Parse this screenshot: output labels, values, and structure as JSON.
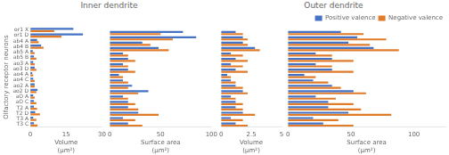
{
  "chart_data": [
    {
      "type": "bar",
      "orientation": "horizontal",
      "title": "Inner dendrite",
      "xlabel": "Volume\n(μm²)",
      "ylabel": "Olfactory receptor neurons",
      "categories": [
        "T3 C",
        "T3 A",
        "T2 D",
        "T2 A",
        "aO C",
        "aO A",
        "ao2 D",
        "ao2 A",
        "ao4 C",
        "ao4 A",
        "ao3 D",
        "ao3 A",
        "ab5 B",
        "ab5 A",
        "ab4 B",
        "ab4 A",
        "or1 D",
        "or1 X"
      ],
      "series": [
        {
          "name": "Positive valence",
          "color": "#4472c4",
          "values": [
            1.5,
            1.2,
            2.0,
            1.5,
            1.5,
            1.2,
            3.0,
            1.8,
            1.2,
            0.8,
            1.8,
            1.2,
            1.5,
            1.0,
            4.5,
            2.8,
            22,
            18
          ]
        },
        {
          "name": "Negative valence",
          "color": "#e07b2a",
          "values": [
            3.0,
            2.5,
            4.0,
            2.8,
            2.5,
            1.8,
            2.5,
            1.8,
            1.8,
            1.2,
            2.5,
            1.8,
            2.5,
            1.8,
            5.5,
            3.5,
            13,
            10
          ]
        }
      ],
      "xlim": [
        0,
        30
      ],
      "xticks": [
        0,
        15,
        30
      ],
      "grid": false
    },
    {
      "type": "bar",
      "orientation": "horizontal",
      "xlabel": "Surface area\n(μm²)",
      "categories": [
        "T3 C",
        "T3 A",
        "T2 D",
        "T2 A",
        "aO C",
        "aO A",
        "ao2 D",
        "ao2 A",
        "ao4 C",
        "ao4 A",
        "ao3 D",
        "ao3 A",
        "ab5 B",
        "ab5 A",
        "ab4 B",
        "ab4 A",
        "or1 D",
        "or1 X"
      ],
      "series": [
        {
          "name": "Positive valence",
          "color": "#4472c4",
          "values": [
            18,
            13,
            28,
            18,
            18,
            13,
            38,
            22,
            13,
            9,
            18,
            13,
            18,
            13,
            48,
            32,
            85,
            72
          ]
        },
        {
          "name": "Negative valence",
          "color": "#e07b2a",
          "values": [
            32,
            25,
            48,
            28,
            25,
            18,
            28,
            18,
            18,
            13,
            25,
            18,
            25,
            18,
            58,
            40,
            62,
            50
          ]
        }
      ],
      "xlim": [
        0,
        100
      ],
      "xticks": [
        0,
        50,
        100
      ],
      "grid": false,
      "tick_labels": "x"
    },
    {
      "type": "bar",
      "orientation": "horizontal",
      "title": "Outer dendrite",
      "xlabel": "Volume\n(μm²)",
      "categories": [
        "T3 C",
        "T3 A",
        "T2 D",
        "T2 A",
        "aO C",
        "aO A",
        "ao2 D",
        "ao2 A",
        "ao4 C",
        "ao4 A",
        "ao3 D",
        "ao3 A",
        "ab5 B",
        "ab5 A",
        "ab4 B",
        "ab4 A",
        "or1 D",
        "or1 X"
      ],
      "series": [
        {
          "name": "Positive valence",
          "color": "#4472c4",
          "values": [
            1.2,
            0.8,
            1.8,
            1.2,
            1.2,
            0.8,
            1.8,
            1.2,
            0.8,
            0.5,
            1.2,
            0.8,
            1.2,
            0.8,
            2.8,
            1.8,
            1.8,
            1.2
          ]
        },
        {
          "name": "Negative valence",
          "color": "#e07b2a",
          "values": [
            2.2,
            1.8,
            2.8,
            1.8,
            1.8,
            1.2,
            2.2,
            1.8,
            1.2,
            0.8,
            2.2,
            1.8,
            2.2,
            1.8,
            3.2,
            2.2,
            2.2,
            1.8
          ]
        }
      ],
      "xlim": [
        0,
        5
      ],
      "xticks": [
        0,
        2.5,
        5
      ],
      "grid": false,
      "tick_labels": "x"
    },
    {
      "type": "bar",
      "orientation": "horizontal",
      "xlabel": "Surface area\n(μm²)",
      "categories": [
        "T3 C",
        "T3 A",
        "T2 D",
        "T2 A",
        "aO C",
        "aO A",
        "ao2 D",
        "ao2 A",
        "ao4 C",
        "ao4 A",
        "ao3 D",
        "ao3 A",
        "ab5 B",
        "ab5 A",
        "ab4 B",
        "ab4 A",
        "or1 D",
        "or1 X"
      ],
      "series": [
        {
          "name": "Positive valence",
          "color": "#4472c4",
          "values": [
            28,
            20,
            48,
            32,
            32,
            22,
            52,
            35,
            20,
            13,
            35,
            22,
            35,
            22,
            68,
            48,
            55,
            42
          ]
        },
        {
          "name": "Negative valence",
          "color": "#e07b2a",
          "values": [
            52,
            40,
            82,
            58,
            52,
            38,
            62,
            42,
            32,
            22,
            52,
            35,
            52,
            35,
            88,
            65,
            78,
            60
          ]
        }
      ],
      "xlim": [
        0,
        125
      ],
      "xticks": [
        0,
        50,
        100
      ],
      "grid": false,
      "tick_labels": "x",
      "legend": "upper right"
    }
  ]
}
